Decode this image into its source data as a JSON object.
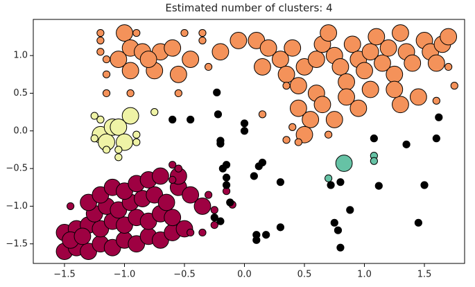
{
  "chart_data": {
    "type": "scatter",
    "title": "Estimated number of clusters: 4",
    "xlim": [
      -1.76,
      1.835
    ],
    "ylim": [
      -1.76,
      1.48
    ],
    "xticks": [
      {
        "value": -1.5,
        "label": "−1.5"
      },
      {
        "value": -1.0,
        "label": "−1.0"
      },
      {
        "value": -0.5,
        "label": "−0.5"
      },
      {
        "value": 0.0,
        "label": "0.0"
      },
      0.5,
      {
        "value": 1.0,
        "label": "1.0"
      },
      {
        "value": 1.5,
        "label": "1.5"
      }
    ],
    "yticks": [
      {
        "value": -1.5,
        "label": "−1.5"
      },
      {
        "value": -1.0,
        "label": "−1.0"
      },
      {
        "value": -0.5,
        "label": "−0.5"
      },
      {
        "value": 0.0,
        "label": "0.0"
      },
      0.5,
      {
        "value": 1.0,
        "label": "1.0"
      }
    ],
    "grid": false,
    "series": [
      {
        "color": "#f4925a",
        "x": [
          -1.0,
          -0.95,
          -0.85,
          -0.7,
          -0.6,
          -0.95,
          -0.75,
          -0.55,
          -0.45,
          -0.2,
          -0.05,
          0.1,
          0.2,
          0.15,
          0.3,
          0.4,
          0.35,
          0.45,
          0.5,
          0.6,
          0.65,
          0.7,
          0.75,
          0.8,
          0.85,
          0.9,
          0.95,
          1.0,
          1.05,
          1.1,
          1.15,
          1.2,
          1.25,
          1.3,
          1.35,
          1.4,
          1.5,
          1.55,
          1.6,
          1.65,
          1.7,
          0.45,
          0.6,
          0.55,
          0.65,
          0.75,
          0.85,
          0.95,
          1.05,
          0.5,
          1.3,
          1.45,
          1.25,
          -1.05,
          -0.8,
          -1.2,
          -1.2,
          -1.2,
          -0.9,
          -0.5,
          -0.35,
          -0.35,
          -1.15,
          -1.15,
          -1.15,
          -0.95,
          -0.55,
          -0.3,
          0.15,
          0.35,
          0.4,
          0.35,
          0.45,
          1.75,
          1.7,
          1.6,
          0.7
        ],
        "values": [
          1.3,
          1.1,
          1.05,
          1.05,
          1.1,
          0.8,
          0.8,
          0.75,
          0.95,
          1.05,
          1.2,
          1.2,
          1.1,
          0.85,
          0.95,
          1.1,
          0.75,
          0.6,
          0.85,
          0.95,
          1.15,
          1.3,
          1.0,
          0.85,
          0.65,
          1.15,
          0.95,
          0.8,
          1.05,
          1.25,
          0.9,
          1.1,
          0.75,
          1.3,
          1.05,
          0.9,
          1.2,
          1.05,
          0.9,
          1.15,
          1.25,
          0.3,
          0.5,
          0.15,
          0.35,
          0.15,
          0.45,
          0.3,
          0.55,
          -0.05,
          0.35,
          0.45,
          0.55,
          0.95,
          0.95,
          1.3,
          1.2,
          1.05,
          1.3,
          1.3,
          1.3,
          1.2,
          0.95,
          0.75,
          0.5,
          0.5,
          0.5,
          0.85,
          0.22,
          0.6,
          0.05,
          -0.12,
          -0.15,
          0.6,
          0.85,
          0.4,
          -0.05
        ],
        "sizes": [
          14,
          14,
          14,
          14,
          14,
          14,
          14,
          14,
          14,
          14,
          14,
          14,
          14,
          14,
          14,
          14,
          14,
          14,
          14,
          14,
          14,
          14,
          14,
          14,
          14,
          14,
          14,
          14,
          14,
          14,
          14,
          14,
          14,
          14,
          14,
          14,
          14,
          14,
          14,
          14,
          14,
          14,
          14,
          14,
          14,
          14,
          14,
          14,
          14,
          14,
          14,
          14,
          14,
          14,
          14,
          6,
          6,
          6,
          6,
          6,
          6,
          6,
          6,
          6,
          6,
          6,
          6,
          6,
          6,
          6,
          6,
          6,
          6,
          6,
          6,
          6,
          6
        ]
      },
      {
        "color": "#9e0142",
        "x": [
          -1.5,
          -1.4,
          -1.3,
          -1.2,
          -1.1,
          -1.0,
          -0.9,
          -0.8,
          -0.7,
          -0.6,
          -1.5,
          -1.4,
          -1.3,
          -1.2,
          -1.1,
          -1.0,
          -0.9,
          -0.8,
          -0.7,
          -0.6,
          -0.5,
          -1.45,
          -1.35,
          -1.25,
          -1.15,
          -1.05,
          -0.95,
          -0.85,
          -0.75,
          -0.65,
          -0.55,
          -1.3,
          -1.2,
          -1.1,
          -1.0,
          -0.9,
          -0.8,
          -0.7,
          -0.55,
          -0.45,
          -0.35,
          -0.6,
          -0.55,
          -0.6,
          -0.15,
          -0.1,
          -0.3,
          -0.25,
          -0.25,
          -1.45,
          -0.45,
          -0.35
        ],
        "values": [
          -1.6,
          -1.55,
          -1.6,
          -1.5,
          -1.55,
          -1.45,
          -1.5,
          -1.4,
          -1.45,
          -1.35,
          -1.35,
          -1.3,
          -1.25,
          -1.3,
          -1.2,
          -1.25,
          -1.15,
          -1.2,
          -1.1,
          -1.15,
          -1.3,
          -1.45,
          -1.4,
          -1.1,
          -1.0,
          -1.05,
          -0.95,
          -0.9,
          -0.85,
          -0.95,
          -0.75,
          -0.95,
          -0.85,
          -0.75,
          -0.8,
          -0.7,
          -0.65,
          -0.6,
          -0.6,
          -0.85,
          -1.0,
          -0.45,
          -0.5,
          -0.65,
          -0.8,
          -0.98,
          -0.85,
          -1.05,
          -1.25,
          -1.0,
          -1.35,
          -1.35
        ],
        "sizes": [
          14,
          14,
          14,
          14,
          14,
          14,
          14,
          14,
          14,
          14,
          14,
          14,
          14,
          14,
          14,
          14,
          14,
          14,
          14,
          14,
          14,
          14,
          14,
          14,
          14,
          14,
          14,
          14,
          14,
          14,
          14,
          14,
          14,
          14,
          14,
          14,
          14,
          14,
          14,
          14,
          14,
          6,
          6,
          6,
          6,
          6,
          6,
          6,
          6,
          6,
          6,
          6
        ]
      },
      {
        "color": "#eff3a6",
        "x": [
          -1.2,
          -1.15,
          -1.1,
          -1.05,
          -1.0,
          -0.95,
          -1.25,
          -1.2,
          -1.25,
          -1.15,
          -1.05,
          -0.9,
          -0.9,
          -0.75,
          -1.05
        ],
        "values": [
          -0.05,
          -0.15,
          0.05,
          0.05,
          -0.15,
          0.2,
          0.2,
          0.15,
          -0.1,
          -0.25,
          -0.35,
          -0.15,
          -0.05,
          0.25,
          -0.25
        ],
        "sizes": [
          14,
          14,
          14,
          14,
          14,
          14,
          6,
          6,
          6,
          6,
          6,
          6,
          6,
          6,
          6
        ]
      },
      {
        "color": "#66c2a5",
        "x": [
          0.83,
          0.7,
          1.08,
          1.08
        ],
        "values": [
          -0.43,
          -0.63,
          -0.33,
          -0.4
        ],
        "sizes": [
          14,
          6,
          6,
          6
        ]
      },
      {
        "color": "#000000",
        "x": [
          -0.6,
          -0.45,
          -0.22,
          -0.23,
          -0.2,
          -0.2,
          -0.15,
          -0.18,
          -0.15,
          -0.15,
          -0.12,
          -0.25,
          -0.2,
          0.0,
          0.0,
          0.15,
          0.12,
          0.08,
          0.3,
          0.1,
          0.18,
          0.1,
          0.3,
          0.75,
          0.78,
          0.8,
          0.88,
          0.72,
          0.8,
          1.12,
          1.35,
          1.5,
          1.45,
          1.6,
          1.62,
          1.08
        ],
        "values": [
          0.15,
          0.15,
          0.22,
          0.51,
          -0.13,
          -0.17,
          -0.45,
          -0.5,
          -0.62,
          -0.72,
          -0.95,
          -1.15,
          -1.2,
          0.1,
          0.0,
          -0.42,
          -0.47,
          -0.6,
          -0.68,
          -1.38,
          -1.38,
          -1.45,
          -1.28,
          -1.22,
          -1.32,
          -1.55,
          -1.05,
          -0.72,
          -0.68,
          -0.73,
          -0.18,
          -0.72,
          -1.22,
          -0.1,
          0.18,
          -0.1
        ],
        "sizes": [
          6,
          6,
          6,
          6,
          6,
          6,
          6,
          6,
          6,
          6,
          6,
          6,
          6,
          6,
          6,
          6,
          6,
          6,
          6,
          6,
          6,
          6,
          6,
          6,
          6,
          6,
          6,
          6,
          6,
          6,
          6,
          6,
          6,
          6,
          6,
          6
        ]
      }
    ]
  }
}
